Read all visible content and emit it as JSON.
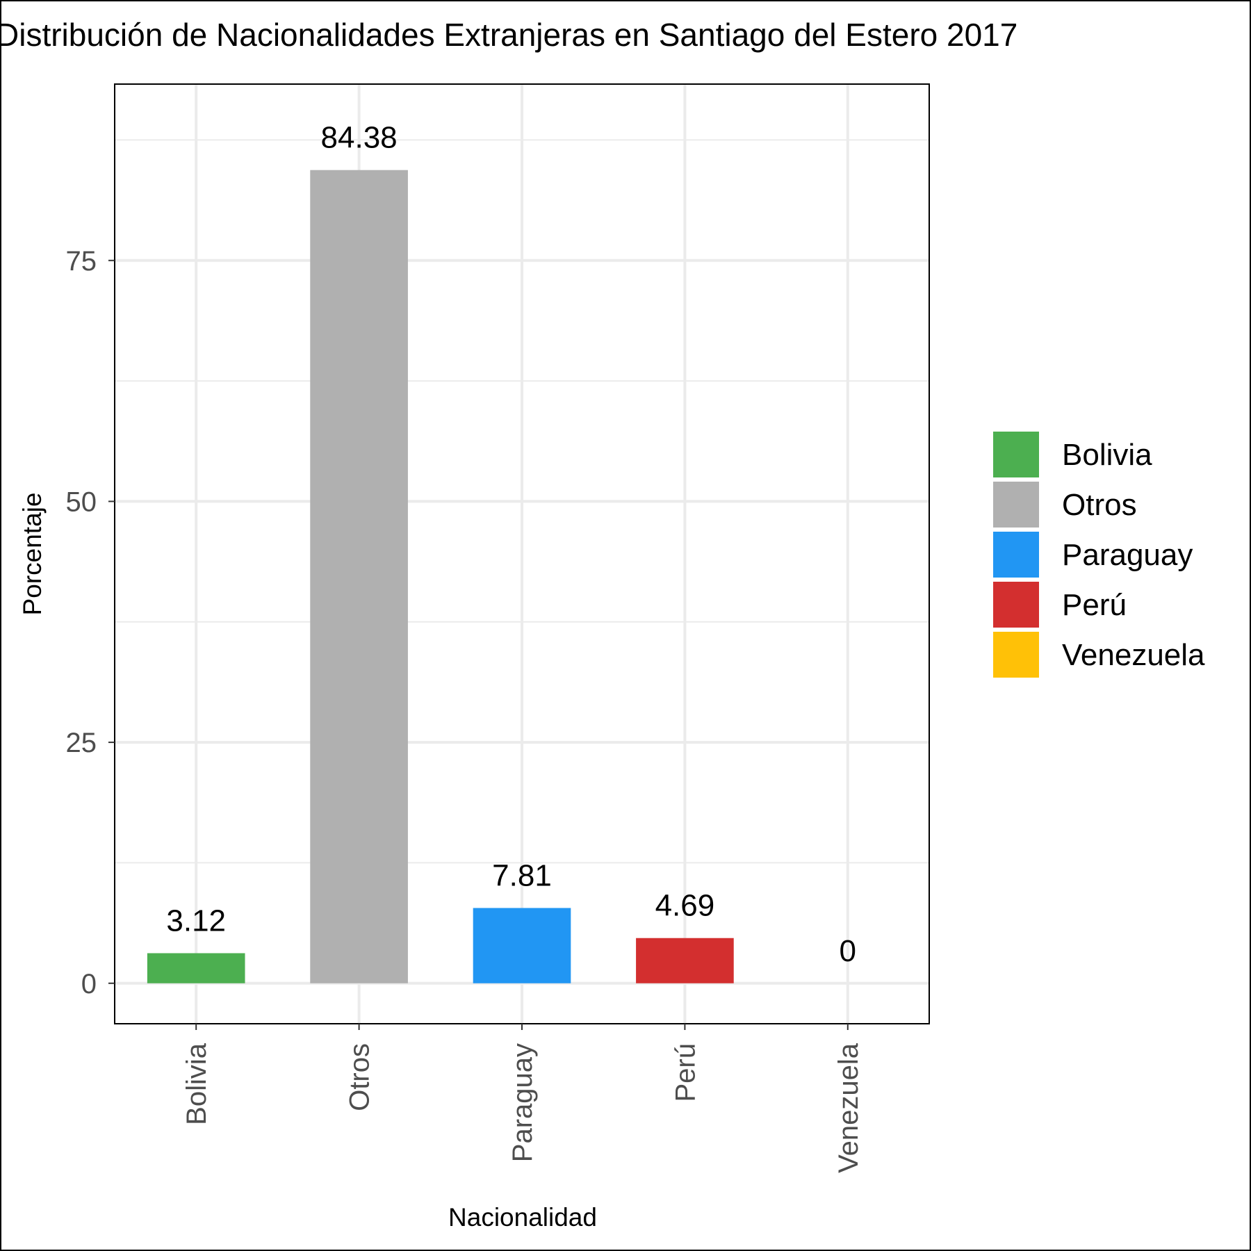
{
  "chart_data": {
    "type": "bar",
    "title": "Distribución de Nacionalidades Extranjeras en Santiago del Estero 2017",
    "xlabel": "Nacionalidad",
    "ylabel": "Porcentaje",
    "categories": [
      "Bolivia",
      "Otros",
      "Paraguay",
      "Perú",
      "Venezuela"
    ],
    "values": [
      3.12,
      84.38,
      7.81,
      4.69,
      0
    ],
    "value_labels": [
      "3.12",
      "84.38",
      "7.81",
      "4.69",
      "0"
    ],
    "colors": [
      "#4CAF50",
      "#B0B0B0",
      "#2196F3",
      "#D32F2F",
      "#FFC107"
    ],
    "yticks": [
      0,
      25,
      50,
      75
    ],
    "ytick_labels": [
      "0",
      "25",
      "50",
      "75"
    ],
    "ylim": [
      -4.2,
      93.3
    ],
    "grid": true,
    "legend": {
      "position": "right",
      "entries": [
        "Bolivia",
        "Otros",
        "Paraguay",
        "Perú",
        "Venezuela"
      ]
    }
  }
}
